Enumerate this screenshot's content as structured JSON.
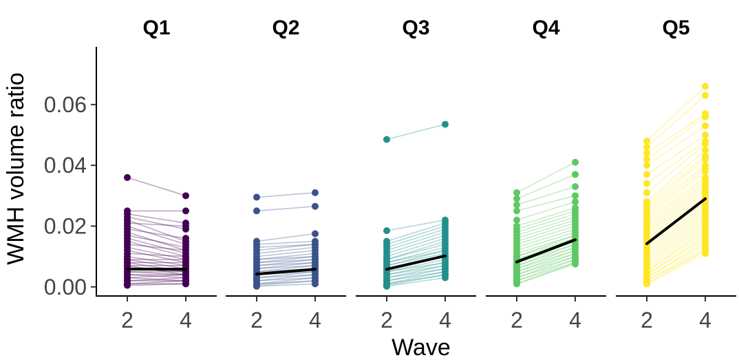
{
  "chart_data": {
    "type": "line",
    "xlabel": "Wave",
    "ylabel": "WMH volume ratio",
    "x_ticks": [
      "2",
      "4"
    ],
    "y_ticks": [
      "0.00",
      "0.02",
      "0.04",
      "0.06"
    ],
    "ylim": [
      -0.003,
      0.079
    ],
    "facets": [
      {
        "name": "Q1",
        "color": "#440154",
        "mean": [
          0.0059,
          0.0058
        ],
        "pairs": [
          [
            0.036,
            0.03
          ],
          [
            0.025,
            0.025
          ],
          [
            0.024,
            0.021
          ],
          [
            0.023,
            0.019
          ],
          [
            0.022,
            0.015
          ],
          [
            0.021,
            0.02
          ],
          [
            0.02,
            0.014
          ],
          [
            0.019,
            0.016
          ],
          [
            0.018,
            0.012
          ],
          [
            0.017,
            0.013
          ],
          [
            0.016,
            0.011
          ],
          [
            0.015,
            0.01
          ],
          [
            0.014,
            0.012
          ],
          [
            0.013,
            0.009
          ],
          [
            0.012,
            0.008
          ],
          [
            0.011,
            0.01
          ],
          [
            0.01,
            0.007
          ],
          [
            0.009,
            0.009
          ],
          [
            0.009,
            0.006
          ],
          [
            0.008,
            0.008
          ],
          [
            0.008,
            0.005
          ],
          [
            0.007,
            0.007
          ],
          [
            0.007,
            0.004
          ],
          [
            0.006,
            0.006
          ],
          [
            0.006,
            0.005
          ],
          [
            0.005,
            0.005
          ],
          [
            0.005,
            0.004
          ],
          [
            0.004,
            0.004
          ],
          [
            0.004,
            0.003
          ],
          [
            0.003,
            0.004
          ],
          [
            0.003,
            0.002
          ],
          [
            0.002,
            0.003
          ],
          [
            0.002,
            0.002
          ],
          [
            0.001,
            0.002
          ],
          [
            0.001,
            0.001
          ],
          [
            0.0005,
            0.001
          ]
        ]
      },
      {
        "name": "Q2",
        "color": "#3b528b",
        "mean": [
          0.0042,
          0.0058
        ],
        "pairs": [
          [
            0.0295,
            0.031
          ],
          [
            0.025,
            0.0265
          ],
          [
            0.015,
            0.0175
          ],
          [
            0.014,
            0.015
          ],
          [
            0.013,
            0.014
          ],
          [
            0.012,
            0.014
          ],
          [
            0.011,
            0.013
          ],
          [
            0.01,
            0.012
          ],
          [
            0.009,
            0.011
          ],
          [
            0.009,
            0.01
          ],
          [
            0.008,
            0.01
          ],
          [
            0.008,
            0.009
          ],
          [
            0.007,
            0.009
          ],
          [
            0.007,
            0.008
          ],
          [
            0.006,
            0.008
          ],
          [
            0.006,
            0.007
          ],
          [
            0.005,
            0.007
          ],
          [
            0.005,
            0.006
          ],
          [
            0.004,
            0.006
          ],
          [
            0.004,
            0.005
          ],
          [
            0.003,
            0.005
          ],
          [
            0.003,
            0.004
          ],
          [
            0.002,
            0.004
          ],
          [
            0.002,
            0.003
          ],
          [
            0.001,
            0.003
          ],
          [
            0.001,
            0.002
          ],
          [
            0.0005,
            0.002
          ],
          [
            0.0002,
            0.001
          ]
        ]
      },
      {
        "name": "Q3",
        "color": "#21908d",
        "mean": [
          0.0058,
          0.0102
        ],
        "pairs": [
          [
            0.0485,
            0.0535
          ],
          [
            0.0185,
            0.022
          ],
          [
            0.015,
            0.021
          ],
          [
            0.014,
            0.02
          ],
          [
            0.013,
            0.019
          ],
          [
            0.012,
            0.018
          ],
          [
            0.011,
            0.017
          ],
          [
            0.01,
            0.016
          ],
          [
            0.009,
            0.015
          ],
          [
            0.009,
            0.014
          ],
          [
            0.008,
            0.013
          ],
          [
            0.008,
            0.012
          ],
          [
            0.007,
            0.012
          ],
          [
            0.007,
            0.011
          ],
          [
            0.006,
            0.01
          ],
          [
            0.006,
            0.01
          ],
          [
            0.005,
            0.009
          ],
          [
            0.005,
            0.008
          ],
          [
            0.004,
            0.008
          ],
          [
            0.004,
            0.007
          ],
          [
            0.003,
            0.007
          ],
          [
            0.003,
            0.006
          ],
          [
            0.002,
            0.006
          ],
          [
            0.002,
            0.005
          ],
          [
            0.001,
            0.005
          ],
          [
            0.001,
            0.004
          ],
          [
            0.0005,
            0.004
          ],
          [
            0.0002,
            0.003
          ]
        ]
      },
      {
        "name": "Q4",
        "color": "#5ec962",
        "mean": [
          0.0082,
          0.0155
        ],
        "pairs": [
          [
            0.031,
            0.041
          ],
          [
            0.029,
            0.037
          ],
          [
            0.027,
            0.033
          ],
          [
            0.025,
            0.03
          ],
          [
            0.022,
            0.028
          ],
          [
            0.02,
            0.026
          ],
          [
            0.019,
            0.025
          ],
          [
            0.018,
            0.024
          ],
          [
            0.017,
            0.023
          ],
          [
            0.016,
            0.022
          ],
          [
            0.015,
            0.021
          ],
          [
            0.014,
            0.02
          ],
          [
            0.013,
            0.019
          ],
          [
            0.012,
            0.018
          ],
          [
            0.011,
            0.017
          ],
          [
            0.01,
            0.017
          ],
          [
            0.01,
            0.016
          ],
          [
            0.009,
            0.016
          ],
          [
            0.009,
            0.015
          ],
          [
            0.008,
            0.015
          ],
          [
            0.008,
            0.014
          ],
          [
            0.007,
            0.014
          ],
          [
            0.007,
            0.013
          ],
          [
            0.006,
            0.013
          ],
          [
            0.006,
            0.012
          ],
          [
            0.005,
            0.012
          ],
          [
            0.005,
            0.011
          ],
          [
            0.004,
            0.011
          ],
          [
            0.004,
            0.01
          ],
          [
            0.003,
            0.01
          ],
          [
            0.003,
            0.009
          ],
          [
            0.002,
            0.009
          ],
          [
            0.002,
            0.008
          ],
          [
            0.001,
            0.008
          ],
          [
            0.001,
            0.0075
          ]
        ]
      },
      {
        "name": "Q5",
        "color": "#fde725",
        "mean": [
          0.0142,
          0.029
        ],
        "pairs": [
          [
            0.048,
            0.066
          ],
          [
            0.046,
            0.063
          ],
          [
            0.044,
            0.057
          ],
          [
            0.042,
            0.056
          ],
          [
            0.04,
            0.053
          ],
          [
            0.037,
            0.05
          ],
          [
            0.034,
            0.048
          ],
          [
            0.031,
            0.047
          ],
          [
            0.028,
            0.045
          ],
          [
            0.027,
            0.043
          ],
          [
            0.026,
            0.042
          ],
          [
            0.025,
            0.04
          ],
          [
            0.024,
            0.039
          ],
          [
            0.023,
            0.038
          ],
          [
            0.022,
            0.036
          ],
          [
            0.021,
            0.035
          ],
          [
            0.02,
            0.034
          ],
          [
            0.019,
            0.033
          ],
          [
            0.018,
            0.032
          ],
          [
            0.017,
            0.031
          ],
          [
            0.016,
            0.03
          ],
          [
            0.015,
            0.029
          ],
          [
            0.014,
            0.028
          ],
          [
            0.013,
            0.027
          ],
          [
            0.012,
            0.026
          ],
          [
            0.011,
            0.025
          ],
          [
            0.01,
            0.024
          ],
          [
            0.009,
            0.023
          ],
          [
            0.008,
            0.022
          ],
          [
            0.007,
            0.021
          ],
          [
            0.006,
            0.02
          ],
          [
            0.005,
            0.019
          ],
          [
            0.005,
            0.018
          ],
          [
            0.004,
            0.017
          ],
          [
            0.004,
            0.016
          ],
          [
            0.003,
            0.015
          ],
          [
            0.003,
            0.014
          ],
          [
            0.002,
            0.013
          ],
          [
            0.002,
            0.012
          ],
          [
            0.001,
            0.012
          ],
          [
            0.001,
            0.011
          ]
        ]
      }
    ]
  }
}
